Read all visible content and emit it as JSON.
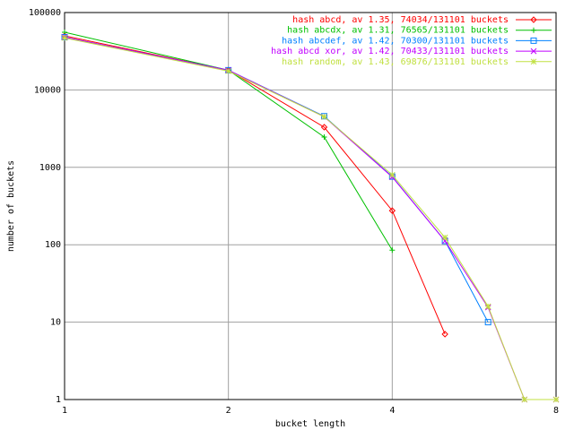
{
  "chart_data": {
    "type": "line",
    "xlabel": "bucket length",
    "ylabel": "number of buckets",
    "x": [
      1,
      2,
      3,
      4,
      5,
      6,
      7,
      8
    ],
    "xlim": [
      1,
      8
    ],
    "xticks": [
      1,
      2,
      4,
      8
    ],
    "xlog": true,
    "ylim": [
      1,
      100000
    ],
    "yticks": [
      1,
      10,
      100,
      1000,
      10000,
      100000
    ],
    "ylog": true,
    "grid": true,
    "legend": "upper right",
    "series": [
      {
        "name": "hash abcd, av 1.35, 74034/131101 buckets",
        "color": "#ff0000",
        "marker": "diamond",
        "values": [
          50000,
          18000,
          3300,
          276,
          7,
          null,
          null,
          null
        ]
      },
      {
        "name": "hash abcdx, av 1.31, 76565/131101 buckets",
        "color": "#00c000",
        "marker": "plus",
        "values": [
          55600,
          18000,
          2460,
          85,
          null,
          null,
          null,
          null
        ]
      },
      {
        "name": "hash abcdef, av 1.42, 70300/131101 buckets",
        "color": "#0080ff",
        "marker": "square",
        "values": [
          48000,
          18000,
          4570,
          760,
          112,
          10,
          null,
          null
        ]
      },
      {
        "name": "hash abcd xor, av 1.42, 70433/131101 buckets",
        "color": "#c000ff",
        "marker": "cross",
        "values": [
          48000,
          18000,
          4500,
          750,
          112,
          15.5,
          1,
          1
        ]
      },
      {
        "name": "hash random, av 1.43, 69876/131101 buckets",
        "color": "#c0e040",
        "marker": "star",
        "values": [
          47000,
          17500,
          4500,
          800,
          124,
          16,
          1,
          1
        ]
      }
    ]
  }
}
